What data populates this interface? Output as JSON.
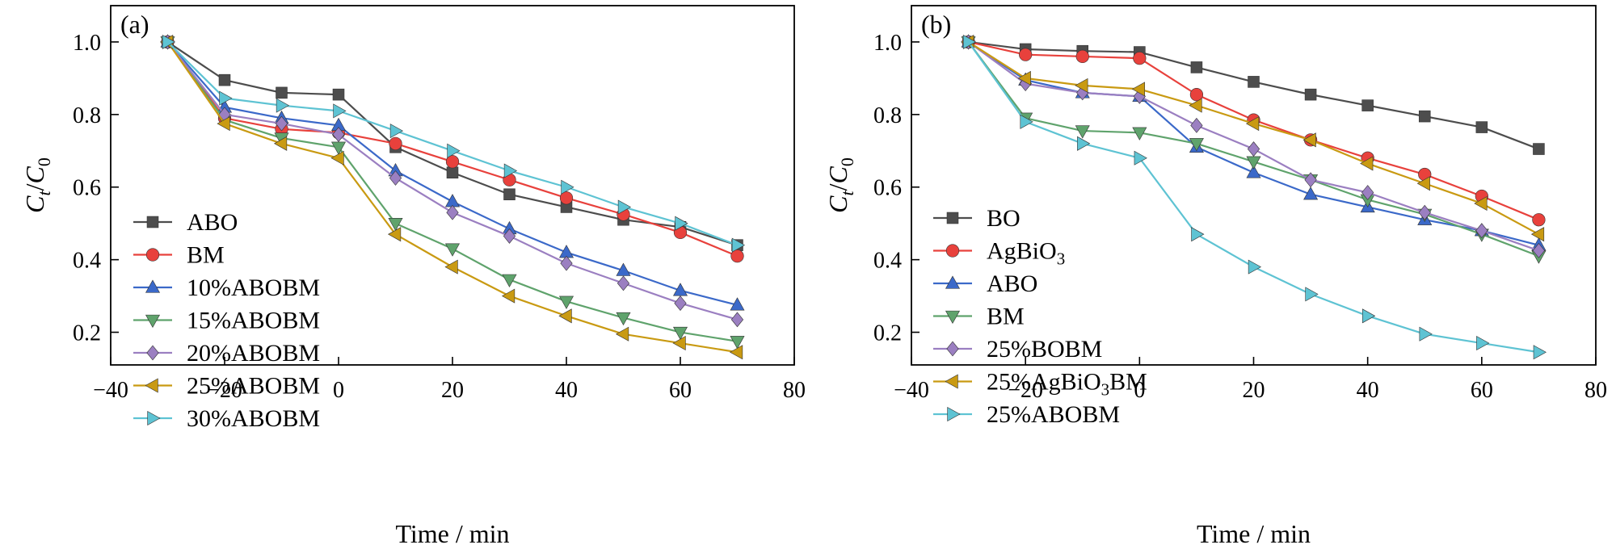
{
  "chart_data": [
    {
      "type": "line",
      "panel_label": "(a)",
      "xlabel": "Time / min",
      "ylabel_main": "C",
      "ylabel_sub1": "t",
      "ylabel_slash": "/",
      "ylabel_sub2": "0",
      "xlim": [
        -40,
        80
      ],
      "ylim": [
        0.11,
        1.1
      ],
      "xticks": [
        -40,
        -20,
        0,
        20,
        40,
        60,
        80
      ],
      "xtick_labels": [
        "−40",
        "−20",
        "0",
        "20",
        "40",
        "60",
        "80"
      ],
      "yticks": [
        0.2,
        0.4,
        0.6,
        0.8,
        1.0
      ],
      "ytick_labels": [
        "0.2",
        "0.4",
        "0.6",
        "0.8",
        "1.0"
      ],
      "grid": false,
      "legend_position": "lower-left",
      "x": [
        -30,
        -20,
        -10,
        0,
        10,
        20,
        30,
        40,
        50,
        60,
        70
      ],
      "series": [
        {
          "name": "ABO",
          "color": "#4d4d4d",
          "marker": "square",
          "values": [
            1.0,
            0.895,
            0.86,
            0.855,
            0.71,
            0.64,
            0.58,
            0.545,
            0.51,
            0.49,
            0.44
          ]
        },
        {
          "name": "BM",
          "color": "#e8413c",
          "marker": "circle",
          "values": [
            1.0,
            0.79,
            0.76,
            0.75,
            0.72,
            0.67,
            0.62,
            0.57,
            0.525,
            0.475,
            0.41
          ]
        },
        {
          "name": "10%ABOBM",
          "color": "#3b69c9",
          "marker": "triangle-up",
          "values": [
            1.0,
            0.82,
            0.79,
            0.77,
            0.645,
            0.56,
            0.485,
            0.42,
            0.37,
            0.315,
            0.275
          ]
        },
        {
          "name": "15%ABOBM",
          "color": "#5fa36c",
          "marker": "triangle-down",
          "values": [
            1.0,
            0.785,
            0.735,
            0.71,
            0.5,
            0.43,
            0.345,
            0.285,
            0.24,
            0.2,
            0.175
          ]
        },
        {
          "name": "20%ABOBM",
          "color": "#9b7fc1",
          "marker": "diamond",
          "values": [
            1.0,
            0.8,
            0.775,
            0.745,
            0.625,
            0.53,
            0.465,
            0.39,
            0.335,
            0.28,
            0.235
          ]
        },
        {
          "name": "25%ABOBM",
          "color": "#c99a12",
          "marker": "triangle-left",
          "values": [
            1.0,
            0.775,
            0.72,
            0.68,
            0.47,
            0.38,
            0.3,
            0.245,
            0.195,
            0.17,
            0.145
          ]
        },
        {
          "name": "30%ABOBM",
          "color": "#5ec3d3",
          "marker": "triangle-right",
          "values": [
            1.0,
            0.845,
            0.825,
            0.81,
            0.755,
            0.7,
            0.645,
            0.6,
            0.545,
            0.5,
            0.44
          ]
        }
      ]
    },
    {
      "type": "line",
      "panel_label": "(b)",
      "xlabel": "Time / min",
      "ylabel_main": "C",
      "ylabel_sub1": "t",
      "ylabel_slash": "/",
      "ylabel_sub2": "0",
      "xlim": [
        -40,
        80
      ],
      "ylim": [
        0.11,
        1.1
      ],
      "xticks": [
        -40,
        -20,
        0,
        20,
        40,
        60,
        80
      ],
      "xtick_labels": [
        "−40",
        "−20",
        "0",
        "20",
        "40",
        "60",
        "80"
      ],
      "yticks": [
        0.2,
        0.4,
        0.6,
        0.8,
        1.0
      ],
      "ytick_labels": [
        "0.2",
        "0.4",
        "0.6",
        "0.8",
        "1.0"
      ],
      "grid": false,
      "legend_position": "lower-left",
      "x": [
        -30,
        -20,
        -10,
        0,
        10,
        20,
        30,
        40,
        50,
        60,
        70
      ],
      "series": [
        {
          "name": "BO",
          "color": "#4d4d4d",
          "marker": "square",
          "values": [
            1.0,
            0.98,
            0.975,
            0.972,
            0.93,
            0.89,
            0.855,
            0.825,
            0.795,
            0.765,
            0.705
          ]
        },
        {
          "name": "AgBiO",
          "name_sub": "3",
          "color": "#e8413c",
          "marker": "circle",
          "values": [
            1.0,
            0.965,
            0.96,
            0.955,
            0.855,
            0.785,
            0.73,
            0.68,
            0.635,
            0.575,
            0.51
          ]
        },
        {
          "name": "ABO",
          "color": "#3b69c9",
          "marker": "triangle-up",
          "values": [
            1.0,
            0.895,
            0.86,
            0.85,
            0.71,
            0.64,
            0.58,
            0.545,
            0.51,
            0.48,
            0.44
          ]
        },
        {
          "name": "BM",
          "color": "#5fa36c",
          "marker": "triangle-down",
          "values": [
            1.0,
            0.79,
            0.755,
            0.75,
            0.72,
            0.67,
            0.62,
            0.565,
            0.525,
            0.47,
            0.41
          ]
        },
        {
          "name": "25%BOBM",
          "color": "#9b7fc1",
          "marker": "diamond",
          "values": [
            1.0,
            0.885,
            0.86,
            0.85,
            0.77,
            0.705,
            0.62,
            0.585,
            0.53,
            0.48,
            0.425
          ]
        },
        {
          "name": "25%AgBiO",
          "name_sub": "3",
          "name_suffix": "BM",
          "color": "#c99a12",
          "marker": "triangle-left",
          "values": [
            1.0,
            0.9,
            0.88,
            0.87,
            0.825,
            0.775,
            0.73,
            0.665,
            0.61,
            0.555,
            0.47
          ]
        },
        {
          "name": "25%ABOBM",
          "color": "#5ec3d3",
          "marker": "triangle-right",
          "values": [
            1.0,
            0.78,
            0.72,
            0.68,
            0.47,
            0.38,
            0.305,
            0.245,
            0.195,
            0.17,
            0.145
          ]
        }
      ]
    }
  ]
}
